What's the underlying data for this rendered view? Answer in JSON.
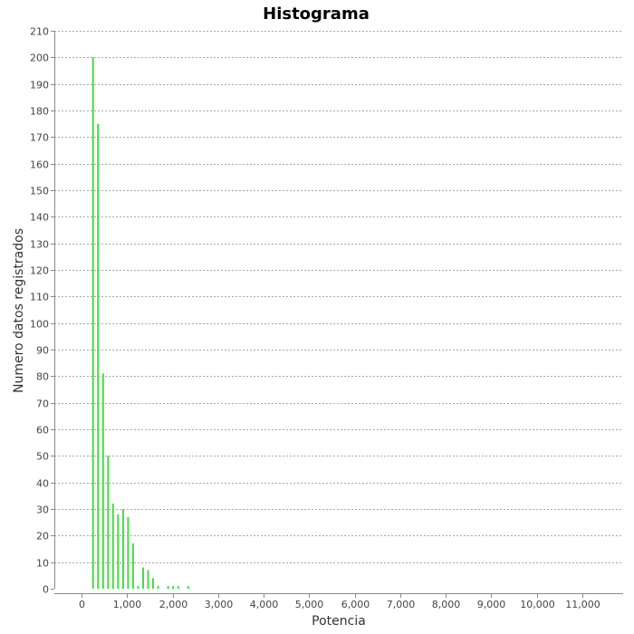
{
  "chart_data": {
    "type": "bar",
    "title": "Histograma",
    "xlabel": "Potencia",
    "ylabel": "Numero datos registrados",
    "xlim": [
      -600,
      11900
    ],
    "ylim": [
      0,
      210
    ],
    "x_ticks": [
      0,
      1000,
      2000,
      3000,
      4000,
      5000,
      6000,
      7000,
      8000,
      9000,
      10000,
      11000
    ],
    "x_tick_labels": [
      "0",
      "1,000",
      "2,000",
      "3,000",
      "4,000",
      "5,000",
      "6,000",
      "7,000",
      "8,000",
      "9,000",
      "10,000",
      "11,000"
    ],
    "y_ticks": [
      0,
      10,
      20,
      30,
      40,
      50,
      60,
      70,
      80,
      90,
      100,
      110,
      120,
      130,
      140,
      150,
      160,
      170,
      180,
      190,
      200,
      210
    ],
    "grid": "horizontal-dashed",
    "bar_color": "#44dd44",
    "series": [
      {
        "x": [
          250,
          360,
          470,
          580,
          690,
          800,
          910,
          1020,
          1130,
          1240,
          1350,
          1460,
          1570,
          1680,
          1790,
          1900,
          2010,
          2120,
          2230,
          2340
        ],
        "values": [
          200,
          175,
          81,
          50,
          32,
          28,
          30,
          27,
          17,
          1,
          8,
          7,
          4,
          1,
          0,
          1,
          1,
          1,
          0,
          1
        ]
      }
    ]
  }
}
